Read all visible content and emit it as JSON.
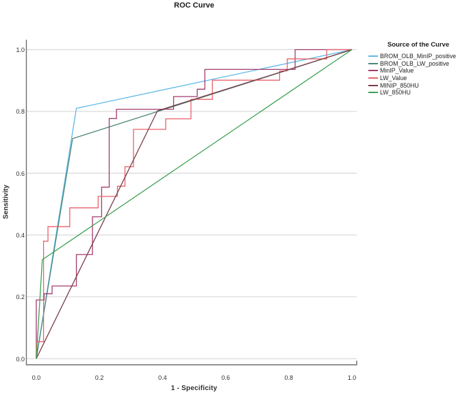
{
  "title": "ROC Curve",
  "axes": {
    "x": {
      "label": "1 - Specificity",
      "ticks": [
        "0.0",
        "0.2",
        "0.4",
        "0.6",
        "0.8",
        "1.0"
      ]
    },
    "y": {
      "label": "Sensitivity",
      "ticks": [
        "0.0",
        "0.2",
        "0.4",
        "0.6",
        "0.8",
        "1.0"
      ]
    }
  },
  "legend": {
    "title": "Source of the Curve"
  },
  "colors": {
    "gridline": "#d9d9d9",
    "frame": "#6e6e6e",
    "background": "#ffffff"
  },
  "chart_data": {
    "type": "line",
    "title": "ROC Curve",
    "xlabel": "1 - Specificity",
    "ylabel": "Sensitivity",
    "xlim": [
      0,
      1
    ],
    "ylim": [
      0,
      1
    ],
    "grid": "horizontal-only",
    "legend_position": "right",
    "series": [
      {
        "name": "BROM_OLB_MinIP_positive",
        "color": "#5db9e8",
        "points": [
          [
            0,
            0
          ],
          [
            0.127,
            0.81
          ],
          [
            1,
            1
          ]
        ]
      },
      {
        "name": "BROM_OLB_LW_positive",
        "color": "#4d8678",
        "points": [
          [
            0,
            0
          ],
          [
            0.115,
            0.712
          ],
          [
            1,
            1
          ]
        ]
      },
      {
        "name": "MinIP_Value",
        "color": "#a23a6e",
        "points": [
          [
            0,
            0
          ],
          [
            0,
            0.19
          ],
          [
            0.025,
            0.19
          ],
          [
            0.025,
            0.21
          ],
          [
            0.05,
            0.21
          ],
          [
            0.05,
            0.235
          ],
          [
            0.127,
            0.235
          ],
          [
            0.127,
            0.337
          ],
          [
            0.178,
            0.337
          ],
          [
            0.178,
            0.459
          ],
          [
            0.207,
            0.459
          ],
          [
            0.207,
            0.555
          ],
          [
            0.231,
            0.555
          ],
          [
            0.231,
            0.777
          ],
          [
            0.254,
            0.777
          ],
          [
            0.254,
            0.807
          ],
          [
            0.435,
            0.807
          ],
          [
            0.435,
            0.848
          ],
          [
            0.51,
            0.848
          ],
          [
            0.51,
            0.872
          ],
          [
            0.534,
            0.872
          ],
          [
            0.534,
            0.936
          ],
          [
            0.82,
            0.936
          ],
          [
            0.82,
            1
          ],
          [
            1,
            1
          ]
        ]
      },
      {
        "name": "LW_Value",
        "color": "#e9606a",
        "points": [
          [
            0,
            0
          ],
          [
            0,
            0.055
          ],
          [
            0.023,
            0.055
          ],
          [
            0.023,
            0.38
          ],
          [
            0.037,
            0.38
          ],
          [
            0.037,
            0.427
          ],
          [
            0.106,
            0.427
          ],
          [
            0.106,
            0.488
          ],
          [
            0.196,
            0.488
          ],
          [
            0.196,
            0.525
          ],
          [
            0.257,
            0.525
          ],
          [
            0.257,
            0.558
          ],
          [
            0.281,
            0.558
          ],
          [
            0.281,
            0.621
          ],
          [
            0.308,
            0.621
          ],
          [
            0.308,
            0.742
          ],
          [
            0.41,
            0.742
          ],
          [
            0.41,
            0.776
          ],
          [
            0.49,
            0.776
          ],
          [
            0.49,
            0.839
          ],
          [
            0.558,
            0.839
          ],
          [
            0.558,
            0.901
          ],
          [
            0.771,
            0.901
          ],
          [
            0.771,
            0.931
          ],
          [
            0.795,
            0.931
          ],
          [
            0.795,
            0.97
          ],
          [
            0.92,
            0.97
          ],
          [
            0.92,
            1
          ],
          [
            1,
            1
          ]
        ]
      },
      {
        "name": "MINIP_850HU",
        "color": "#7a3a44",
        "points": [
          [
            0,
            0
          ],
          [
            0.384,
            0.802
          ],
          [
            1,
            1
          ]
        ]
      },
      {
        "name": "LW_850HU",
        "color": "#3da050",
        "points": [
          [
            0,
            0
          ],
          [
            0.019,
            0.32
          ],
          [
            1,
            1
          ]
        ]
      }
    ]
  }
}
